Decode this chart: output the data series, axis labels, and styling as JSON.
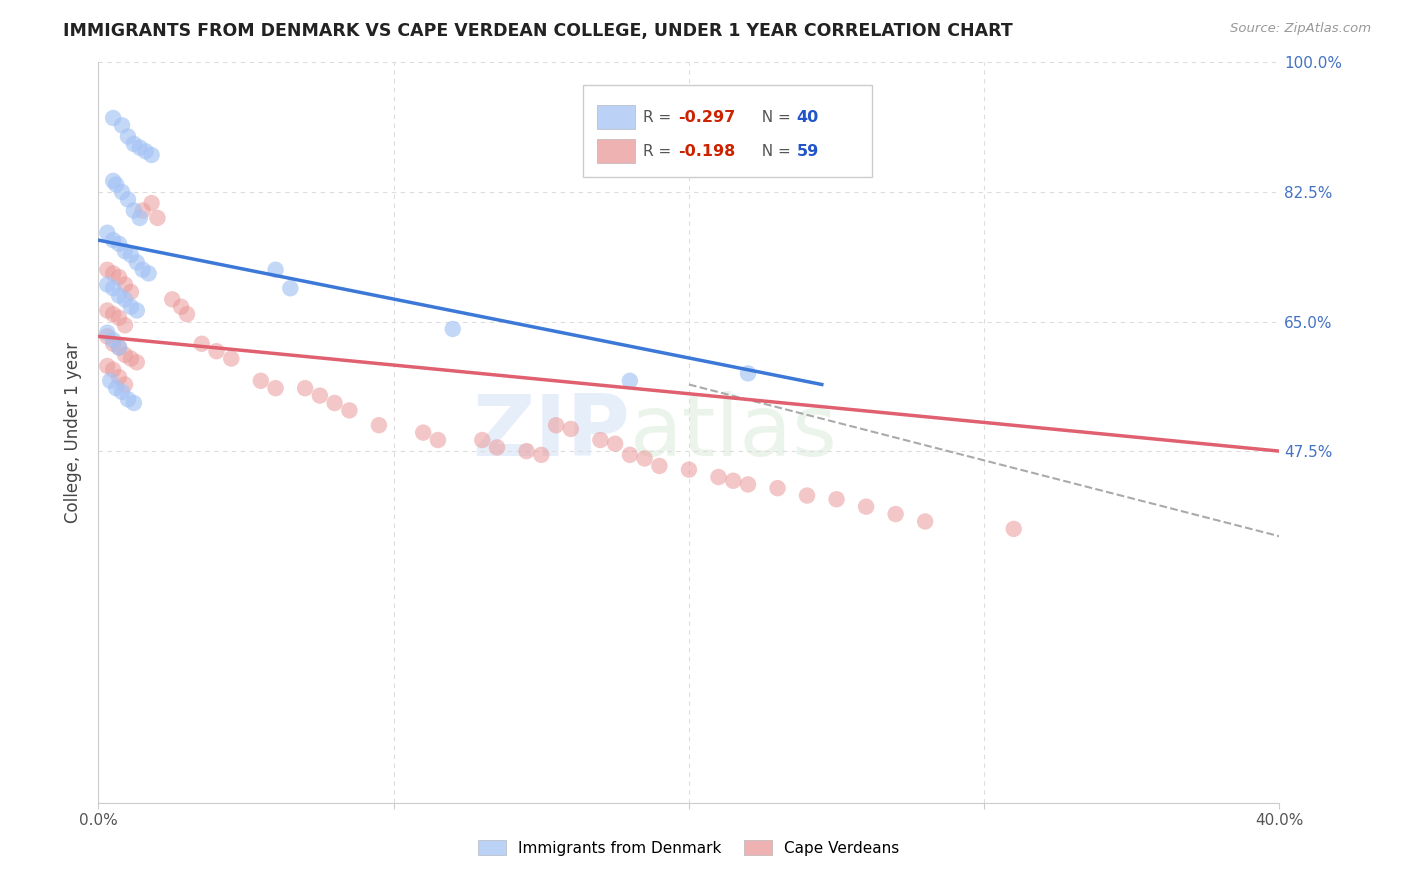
{
  "title": "IMMIGRANTS FROM DENMARK VS CAPE VERDEAN COLLEGE, UNDER 1 YEAR CORRELATION CHART",
  "source": "Source: ZipAtlas.com",
  "ylabel": "College, Under 1 year",
  "x_min": 0.0,
  "x_max": 0.4,
  "y_min": 0.0,
  "y_max": 1.0,
  "x_ticks": [
    0.0,
    0.1,
    0.2,
    0.3,
    0.4
  ],
  "x_tick_labels": [
    "0.0%",
    "",
    "",
    "",
    "40.0%"
  ],
  "y_ticks": [
    0.0,
    0.475,
    0.65,
    0.825,
    1.0
  ],
  "y_tick_right_labels": [
    "",
    "47.5%",
    "65.0%",
    "82.5%",
    "100.0%"
  ],
  "blue_color": "#a4c2f4",
  "pink_color": "#ea9999",
  "blue_line_color": "#3c78d8",
  "pink_line_color": "#e06070",
  "dashed_line_color": "#aaaaaa",
  "watermark_zip": "ZIP",
  "watermark_atlas": "atlas",
  "blue_scatter_x": [
    0.005,
    0.008,
    0.01,
    0.012,
    0.014,
    0.016,
    0.018,
    0.005,
    0.006,
    0.008,
    0.01,
    0.012,
    0.014,
    0.003,
    0.005,
    0.007,
    0.009,
    0.011,
    0.013,
    0.015,
    0.017,
    0.003,
    0.005,
    0.007,
    0.009,
    0.011,
    0.013,
    0.003,
    0.005,
    0.007,
    0.06,
    0.065,
    0.12,
    0.18,
    0.22,
    0.004,
    0.006,
    0.008,
    0.01,
    0.012
  ],
  "blue_scatter_y": [
    0.925,
    0.915,
    0.9,
    0.89,
    0.885,
    0.88,
    0.875,
    0.84,
    0.835,
    0.825,
    0.815,
    0.8,
    0.79,
    0.77,
    0.76,
    0.755,
    0.745,
    0.74,
    0.73,
    0.72,
    0.715,
    0.7,
    0.695,
    0.685,
    0.68,
    0.67,
    0.665,
    0.635,
    0.625,
    0.615,
    0.72,
    0.695,
    0.64,
    0.57,
    0.58,
    0.57,
    0.56,
    0.555,
    0.545,
    0.54
  ],
  "pink_scatter_x": [
    0.003,
    0.005,
    0.007,
    0.009,
    0.011,
    0.013,
    0.003,
    0.005,
    0.007,
    0.009,
    0.003,
    0.005,
    0.007,
    0.009,
    0.011,
    0.003,
    0.005,
    0.007,
    0.009,
    0.015,
    0.018,
    0.02,
    0.025,
    0.028,
    0.03,
    0.035,
    0.04,
    0.045,
    0.055,
    0.06,
    0.07,
    0.075,
    0.08,
    0.085,
    0.095,
    0.11,
    0.115,
    0.13,
    0.135,
    0.145,
    0.15,
    0.155,
    0.16,
    0.17,
    0.175,
    0.18,
    0.185,
    0.19,
    0.2,
    0.21,
    0.215,
    0.22,
    0.23,
    0.24,
    0.25,
    0.26,
    0.27,
    0.28,
    0.31
  ],
  "pink_scatter_y": [
    0.63,
    0.62,
    0.615,
    0.605,
    0.6,
    0.595,
    0.665,
    0.66,
    0.655,
    0.645,
    0.72,
    0.715,
    0.71,
    0.7,
    0.69,
    0.59,
    0.585,
    0.575,
    0.565,
    0.8,
    0.81,
    0.79,
    0.68,
    0.67,
    0.66,
    0.62,
    0.61,
    0.6,
    0.57,
    0.56,
    0.56,
    0.55,
    0.54,
    0.53,
    0.51,
    0.5,
    0.49,
    0.49,
    0.48,
    0.475,
    0.47,
    0.51,
    0.505,
    0.49,
    0.485,
    0.47,
    0.465,
    0.455,
    0.45,
    0.44,
    0.435,
    0.43,
    0.425,
    0.415,
    0.41,
    0.4,
    0.39,
    0.38,
    0.37
  ],
  "blue_line_x": [
    0.0,
    0.245
  ],
  "blue_line_y": [
    0.76,
    0.565
  ],
  "pink_line_x": [
    0.0,
    0.4
  ],
  "pink_line_y": [
    0.63,
    0.475
  ],
  "dashed_line_x": [
    0.2,
    0.4
  ],
  "dashed_line_y": [
    0.565,
    0.36
  ],
  "grid_color": "#dddddd",
  "background_color": "#ffffff"
}
